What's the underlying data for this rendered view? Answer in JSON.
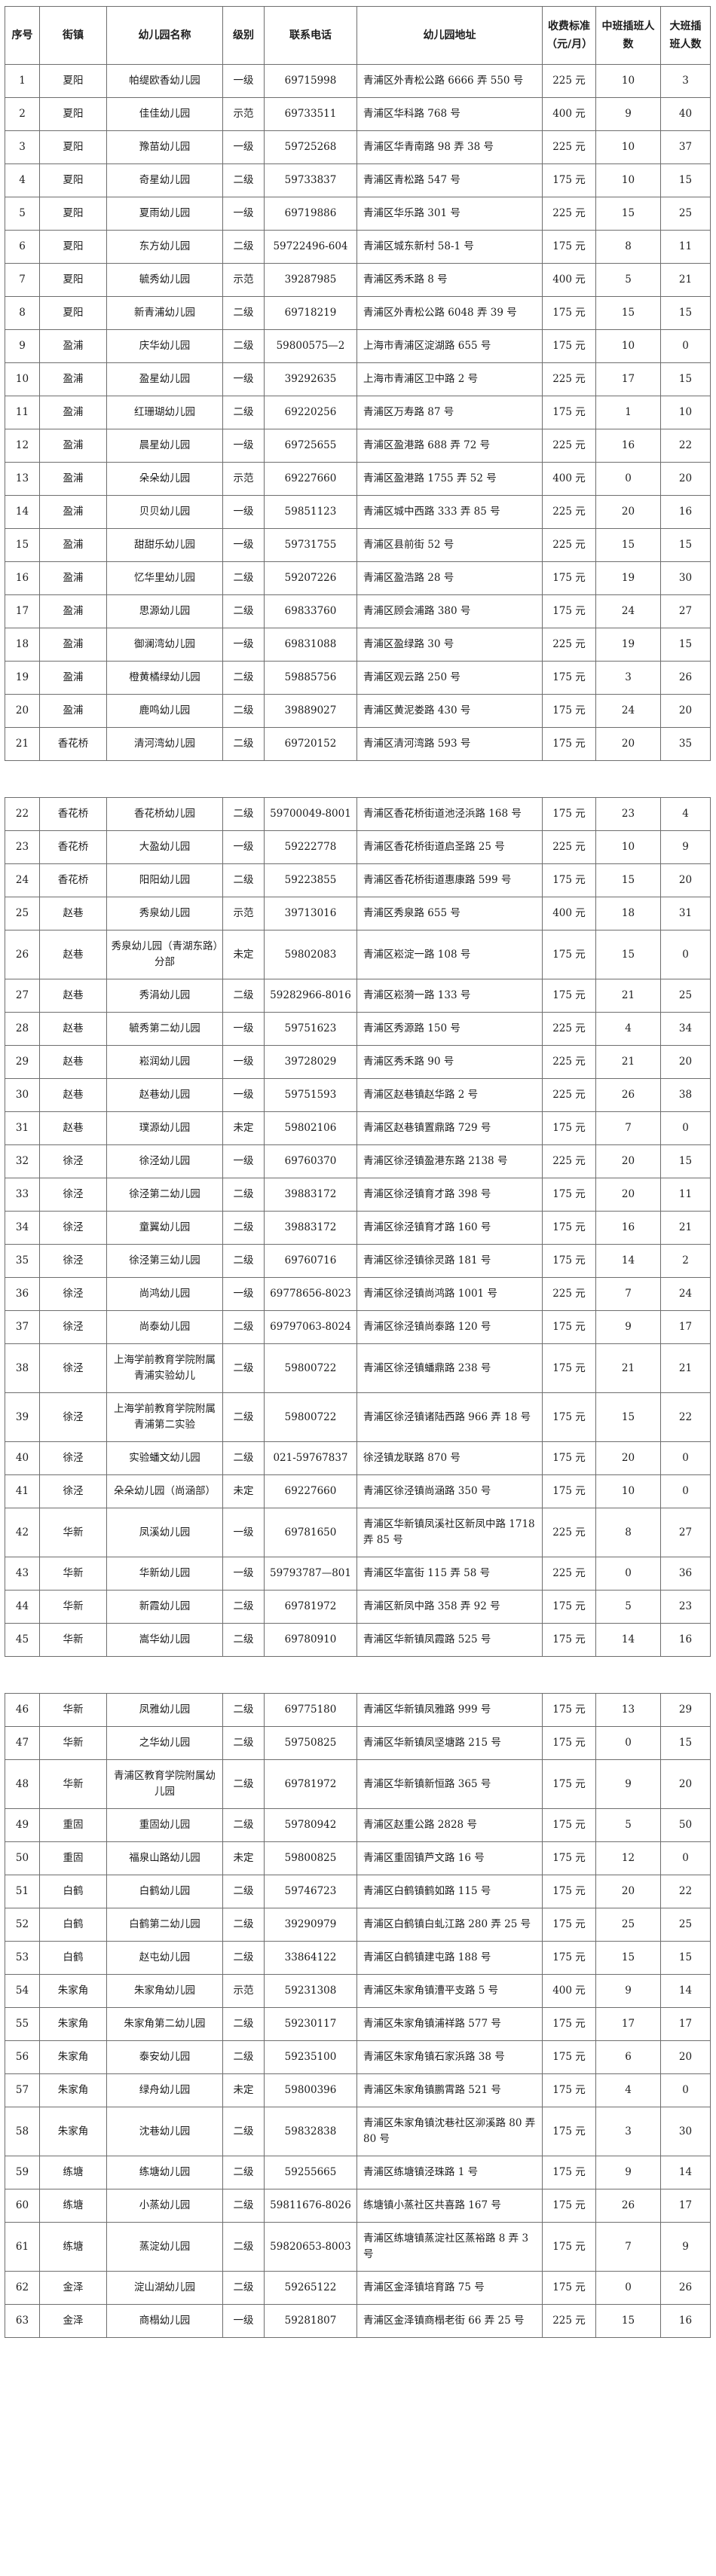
{
  "colors": {
    "background": "#ffffff",
    "text": "#1c1c1c",
    "border": "#6e6e6e"
  },
  "table": {
    "columns": [
      "序号",
      "街镇",
      "幼儿园名称",
      "级别",
      "联系电话",
      "幼儿园地址",
      "收费标准（元/月）",
      "中班插班人数",
      "大班插班人数"
    ],
    "sections": [
      {
        "rows": [
          {
            "no": "1",
            "town": "夏阳",
            "name": "帕缇欧香幼儿园",
            "level": "一级",
            "phone": "69715998",
            "address": "青浦区外青松公路 6666 弄 550 号",
            "fee": "225 元",
            "mid": "10",
            "big": "3"
          },
          {
            "no": "2",
            "town": "夏阳",
            "name": "佳佳幼儿园",
            "level": "示范",
            "phone": "69733511",
            "address": "青浦区华科路 768 号",
            "fee": "400 元",
            "mid": "9",
            "big": "40"
          },
          {
            "no": "3",
            "town": "夏阳",
            "name": "豫苗幼儿园",
            "level": "一级",
            "phone": "59725268",
            "address": "青浦区华青南路 98 弄 38 号",
            "fee": "225 元",
            "mid": "10",
            "big": "37"
          },
          {
            "no": "4",
            "town": "夏阳",
            "name": "奇星幼儿园",
            "level": "二级",
            "phone": "59733837",
            "address": "青浦区青松路 547 号",
            "fee": "175 元",
            "mid": "10",
            "big": "15"
          },
          {
            "no": "5",
            "town": "夏阳",
            "name": "夏雨幼儿园",
            "level": "一级",
            "phone": "69719886",
            "address": "青浦区华乐路 301 号",
            "fee": "225 元",
            "mid": "15",
            "big": "25"
          },
          {
            "no": "6",
            "town": "夏阳",
            "name": "东方幼儿园",
            "level": "二级",
            "phone": "59722496-604",
            "address": "青浦区城东新村 58-1 号",
            "fee": "175 元",
            "mid": "8",
            "big": "11"
          },
          {
            "no": "7",
            "town": "夏阳",
            "name": "毓秀幼儿园",
            "level": "示范",
            "phone": "39287985",
            "address": "青浦区秀禾路 8 号",
            "fee": "400 元",
            "mid": "5",
            "big": "21"
          },
          {
            "no": "8",
            "town": "夏阳",
            "name": "新青浦幼儿园",
            "level": "二级",
            "phone": "69718219",
            "address": "青浦区外青松公路 6048 弄 39 号",
            "fee": "175 元",
            "mid": "15",
            "big": "15"
          },
          {
            "no": "9",
            "town": "盈浦",
            "name": "庆华幼儿园",
            "level": "二级",
            "phone": "59800575—2",
            "address": "上海市青浦区淀湖路 655 号",
            "fee": "175 元",
            "mid": "10",
            "big": "0"
          },
          {
            "no": "10",
            "town": "盈浦",
            "name": "盈星幼儿园",
            "level": "一级",
            "phone": "39292635",
            "address": "上海市青浦区卫中路 2 号",
            "fee": "225 元",
            "mid": "17",
            "big": "15"
          },
          {
            "no": "11",
            "town": "盈浦",
            "name": "红珊瑚幼儿园",
            "level": "二级",
            "phone": "69220256",
            "address": "青浦区万寿路 87 号",
            "fee": "175 元",
            "mid": "1",
            "big": "10"
          },
          {
            "no": "12",
            "town": "盈浦",
            "name": "晨星幼儿园",
            "level": "一级",
            "phone": "69725655",
            "address": "青浦区盈港路 688 弄 72 号",
            "fee": "225 元",
            "mid": "16",
            "big": "22"
          },
          {
            "no": "13",
            "town": "盈浦",
            "name": "朵朵幼儿园",
            "level": "示范",
            "phone": "69227660",
            "address": "青浦区盈港路 1755 弄 52 号",
            "fee": "400 元",
            "mid": "0",
            "big": "20"
          },
          {
            "no": "14",
            "town": "盈浦",
            "name": "贝贝幼儿园",
            "level": "一级",
            "phone": "59851123",
            "address": "青浦区城中西路 333 弄 85 号",
            "fee": "225 元",
            "mid": "20",
            "big": "16"
          },
          {
            "no": "15",
            "town": "盈浦",
            "name": "甜甜乐幼儿园",
            "level": "一级",
            "phone": "59731755",
            "address": "青浦区县前街 52 号",
            "fee": "225 元",
            "mid": "15",
            "big": "15"
          },
          {
            "no": "16",
            "town": "盈浦",
            "name": "忆华里幼儿园",
            "level": "二级",
            "phone": "59207226",
            "address": "青浦区盈浩路 28 号",
            "fee": "175 元",
            "mid": "19",
            "big": "30"
          },
          {
            "no": "17",
            "town": "盈浦",
            "name": "思源幼儿园",
            "level": "二级",
            "phone": "69833760",
            "address": "青浦区顾会浦路 380 号",
            "fee": "175 元",
            "mid": "24",
            "big": "27"
          },
          {
            "no": "18",
            "town": "盈浦",
            "name": "御澜湾幼儿园",
            "level": "一级",
            "phone": "69831088",
            "address": "青浦区盈绿路 30 号",
            "fee": "225 元",
            "mid": "19",
            "big": "15"
          },
          {
            "no": "19",
            "town": "盈浦",
            "name": "橙黄橘绿幼儿园",
            "level": "二级",
            "phone": "59885756",
            "address": "青浦区观云路 250 号",
            "fee": "175 元",
            "mid": "3",
            "big": "26"
          },
          {
            "no": "20",
            "town": "盈浦",
            "name": "鹿鸣幼儿园",
            "level": "二级",
            "phone": "39889027",
            "address": "青浦区黄泥娄路 430 号",
            "fee": "175 元",
            "mid": "24",
            "big": "20"
          },
          {
            "no": "21",
            "town": "香花桥",
            "name": "清河湾幼儿园",
            "level": "二级",
            "phone": "69720152",
            "address": "青浦区清河湾路 593 号",
            "fee": "175 元",
            "mid": "20",
            "big": "35"
          }
        ]
      },
      {
        "rows": [
          {
            "no": "22",
            "town": "香花桥",
            "name": "香花桥幼儿园",
            "level": "二级",
            "phone": "59700049-8001",
            "address": "青浦区香花桥街道池泾浜路 168 号",
            "fee": "175 元",
            "mid": "23",
            "big": "4"
          },
          {
            "no": "23",
            "town": "香花桥",
            "name": "大盈幼儿园",
            "level": "一级",
            "phone": "59222778",
            "address": "青浦区香花桥街道启圣路 25 号",
            "fee": "225 元",
            "mid": "10",
            "big": "9"
          },
          {
            "no": "24",
            "town": "香花桥",
            "name": "阳阳幼儿园",
            "level": "二级",
            "phone": "59223855",
            "address": "青浦区香花桥街道惠康路 599 号",
            "fee": "175 元",
            "mid": "15",
            "big": "20"
          },
          {
            "no": "25",
            "town": "赵巷",
            "name": "秀泉幼儿园",
            "level": "示范",
            "phone": "39713016",
            "address": "青浦区秀泉路 655 号",
            "fee": "400 元",
            "mid": "18",
            "big": "31"
          },
          {
            "no": "26",
            "town": "赵巷",
            "name": "秀泉幼儿园（青湖东路）分部",
            "level": "未定",
            "phone": "59802083",
            "address": "青浦区崧淀一路 108 号",
            "fee": "175 元",
            "mid": "15",
            "big": "0"
          },
          {
            "no": "27",
            "town": "赵巷",
            "name": "秀涓幼儿园",
            "level": "二级",
            "phone": "59282966-8016",
            "address": "青浦区崧漪一路 133 号",
            "fee": "175 元",
            "mid": "21",
            "big": "25"
          },
          {
            "no": "28",
            "town": "赵巷",
            "name": "毓秀第二幼儿园",
            "level": "一级",
            "phone": "59751623",
            "address": "青浦区秀源路 150 号",
            "fee": "225 元",
            "mid": "4",
            "big": "34"
          },
          {
            "no": "29",
            "town": "赵巷",
            "name": "崧润幼儿园",
            "level": "一级",
            "phone": "39728029",
            "address": "青浦区秀禾路 90 号",
            "fee": "225 元",
            "mid": "21",
            "big": "20"
          },
          {
            "no": "30",
            "town": "赵巷",
            "name": "赵巷幼儿园",
            "level": "一级",
            "phone": "59751593",
            "address": "青浦区赵巷镇赵华路 2 号",
            "fee": "225 元",
            "mid": "26",
            "big": "38"
          },
          {
            "no": "31",
            "town": "赵巷",
            "name": "璞源幼儿园",
            "level": "未定",
            "phone": "59802106",
            "address": "青浦区赵巷镇置鼎路 729 号",
            "fee": "175 元",
            "mid": "7",
            "big": "0"
          },
          {
            "no": "32",
            "town": "徐泾",
            "name": "徐泾幼儿园",
            "level": "一级",
            "phone": "69760370",
            "address": "青浦区徐泾镇盈港东路 2138 号",
            "fee": "225 元",
            "mid": "20",
            "big": "15"
          },
          {
            "no": "33",
            "town": "徐泾",
            "name": "徐泾第二幼儿园",
            "level": "二级",
            "phone": "39883172",
            "address": "青浦区徐泾镇育才路 398 号",
            "fee": "175 元",
            "mid": "20",
            "big": "11"
          },
          {
            "no": "34",
            "town": "徐泾",
            "name": "童翼幼儿园",
            "level": "二级",
            "phone": "39883172",
            "address": "青浦区徐泾镇育才路 160 号",
            "fee": "175 元",
            "mid": "16",
            "big": "21"
          },
          {
            "no": "35",
            "town": "徐泾",
            "name": "徐泾第三幼儿园",
            "level": "二级",
            "phone": "69760716",
            "address": "青浦区徐泾镇徐灵路 181 号",
            "fee": "175 元",
            "mid": "14",
            "big": "2"
          },
          {
            "no": "36",
            "town": "徐泾",
            "name": "尚鸿幼儿园",
            "level": "一级",
            "phone": "69778656-8023",
            "address": "青浦区徐泾镇尚鸿路 1001 号",
            "fee": "225 元",
            "mid": "7",
            "big": "24"
          },
          {
            "no": "37",
            "town": "徐泾",
            "name": "尚泰幼儿园",
            "level": "二级",
            "phone": "69797063-8024",
            "address": "青浦区徐泾镇尚泰路 120 号",
            "fee": "175 元",
            "mid": "9",
            "big": "17"
          },
          {
            "no": "38",
            "town": "徐泾",
            "name": "上海学前教育学院附属青浦实验幼儿",
            "level": "二级",
            "phone": "59800722",
            "address": "青浦区徐泾镇蟠鼎路 238 号",
            "fee": "175 元",
            "mid": "21",
            "big": "21"
          },
          {
            "no": "39",
            "town": "徐泾",
            "name": "上海学前教育学院附属青浦第二实验",
            "level": "二级",
            "phone": "59800722",
            "address": "青浦区徐泾镇诸陆西路 966 弄 18 号",
            "fee": "175 元",
            "mid": "15",
            "big": "22"
          },
          {
            "no": "40",
            "town": "徐泾",
            "name": "实验蟠文幼儿园",
            "level": "二级",
            "phone": "021-59767837",
            "address": "徐泾镇龙联路 870 号",
            "fee": "175 元",
            "mid": "20",
            "big": "0"
          },
          {
            "no": "41",
            "town": "徐泾",
            "name": "朵朵幼儿园（尚涵部）",
            "level": "未定",
            "phone": "69227660",
            "address": "青浦区徐泾镇尚涵路 350 号",
            "fee": "175 元",
            "mid": "10",
            "big": "0"
          },
          {
            "no": "42",
            "town": "华新",
            "name": "凤溪幼儿园",
            "level": "一级",
            "phone": "69781650",
            "address": "青浦区华新镇凤溪社区新凤中路 1718 弄 85 号",
            "fee": "225 元",
            "mid": "8",
            "big": "27"
          },
          {
            "no": "43",
            "town": "华新",
            "name": "华新幼儿园",
            "level": "一级",
            "phone": "59793787—801",
            "address": "青浦区华富街 115 弄 58 号",
            "fee": "225 元",
            "mid": "0",
            "big": "36"
          },
          {
            "no": "44",
            "town": "华新",
            "name": "新霞幼儿园",
            "level": "二级",
            "phone": "69781972",
            "address": "青浦区新凤中路 358 弄 92 号",
            "fee": "175 元",
            "mid": "5",
            "big": "23"
          },
          {
            "no": "45",
            "town": "华新",
            "name": "嵩华幼儿园",
            "level": "二级",
            "phone": "69780910",
            "address": "青浦区华新镇凤霞路 525 号",
            "fee": "175 元",
            "mid": "14",
            "big": "16"
          }
        ]
      },
      {
        "rows": [
          {
            "no": "46",
            "town": "华新",
            "name": "凤雅幼儿园",
            "level": "二级",
            "phone": "69775180",
            "address": "青浦区华新镇凤雅路 999 号",
            "fee": "175 元",
            "mid": "13",
            "big": "29"
          },
          {
            "no": "47",
            "town": "华新",
            "name": "之华幼儿园",
            "level": "二级",
            "phone": "59750825",
            "address": "青浦区华新镇凤坚塘路 215 号",
            "fee": "175 元",
            "mid": "0",
            "big": "15"
          },
          {
            "no": "48",
            "town": "华新",
            "name": "青浦区教育学院附属幼儿园",
            "level": "二级",
            "phone": "69781972",
            "address": "青浦区华新镇新恒路 365 号",
            "fee": "175 元",
            "mid": "9",
            "big": "20"
          },
          {
            "no": "49",
            "town": "重固",
            "name": "重固幼儿园",
            "level": "二级",
            "phone": "59780942",
            "address": "青浦区赵重公路 2828 号",
            "fee": "175 元",
            "mid": "5",
            "big": "50"
          },
          {
            "no": "50",
            "town": "重固",
            "name": "福泉山路幼儿园",
            "level": "未定",
            "phone": "59800825",
            "address": "青浦区重固镇芦文路 16 号",
            "fee": "175 元",
            "mid": "12",
            "big": "0"
          },
          {
            "no": "51",
            "town": "白鹤",
            "name": "白鹤幼儿园",
            "level": "二级",
            "phone": "59746723",
            "address": "青浦区白鹤镇鹤如路 115 号",
            "fee": "175 元",
            "mid": "20",
            "big": "22"
          },
          {
            "no": "52",
            "town": "白鹤",
            "name": "白鹤第二幼儿园",
            "level": "二级",
            "phone": "39290979",
            "address": "青浦区白鹤镇白虬江路 280 弄 25 号",
            "fee": "175 元",
            "mid": "25",
            "big": "25"
          },
          {
            "no": "53",
            "town": "白鹤",
            "name": "赵屯幼儿园",
            "level": "二级",
            "phone": "33864122",
            "address": "青浦区白鹤镇建屯路 188 号",
            "fee": "175 元",
            "mid": "15",
            "big": "15"
          },
          {
            "no": "54",
            "town": "朱家角",
            "name": "朱家角幼儿园",
            "level": "示范",
            "phone": "59231308",
            "address": "青浦区朱家角镇漕平支路 5 号",
            "fee": "400 元",
            "mid": "9",
            "big": "14"
          },
          {
            "no": "55",
            "town": "朱家角",
            "name": "朱家角第二幼儿园",
            "level": "二级",
            "phone": "59230117",
            "address": "青浦区朱家角镇浦祥路 577 号",
            "fee": "175 元",
            "mid": "17",
            "big": "17"
          },
          {
            "no": "56",
            "town": "朱家角",
            "name": "泰安幼儿园",
            "level": "二级",
            "phone": "59235100",
            "address": "青浦区朱家角镇石家浜路 38 号",
            "fee": "175 元",
            "mid": "6",
            "big": "20"
          },
          {
            "no": "57",
            "town": "朱家角",
            "name": "绿舟幼儿园",
            "level": "未定",
            "phone": "59800396",
            "address": "青浦区朱家角镇鹏霄路 521 号",
            "fee": "175 元",
            "mid": "4",
            "big": "0"
          },
          {
            "no": "58",
            "town": "朱家角",
            "name": "沈巷幼儿园",
            "level": "二级",
            "phone": "59832838",
            "address": "青浦区朱家角镇沈巷社区泖溪路 80 弄 80 号",
            "fee": "175 元",
            "mid": "3",
            "big": "30"
          },
          {
            "no": "59",
            "town": "练塘",
            "name": "练塘幼儿园",
            "level": "二级",
            "phone": "59255665",
            "address": "青浦区练塘镇泾珠路 1 号",
            "fee": "175 元",
            "mid": "9",
            "big": "14"
          },
          {
            "no": "60",
            "town": "练塘",
            "name": "小蒸幼儿园",
            "level": "二级",
            "phone": "59811676-8026",
            "address": "练塘镇小蒸社区共喜路 167 号",
            "fee": "175 元",
            "mid": "26",
            "big": "17"
          },
          {
            "no": "61",
            "town": "练塘",
            "name": "蒸淀幼儿园",
            "level": "二级",
            "phone": "59820653-8003",
            "address": "青浦区练塘镇蒸淀社区蒸裕路 8 弄 3 号",
            "fee": "175 元",
            "mid": "7",
            "big": "9"
          },
          {
            "no": "62",
            "town": "金泽",
            "name": "淀山湖幼儿园",
            "level": "二级",
            "phone": "59265122",
            "address": "青浦区金泽镇培育路 75 号",
            "fee": "175 元",
            "mid": "0",
            "big": "26"
          },
          {
            "no": "63",
            "town": "金泽",
            "name": "商榻幼儿园",
            "level": "一级",
            "phone": "59281807",
            "address": "青浦区金泽镇商榻老街 66 弄 25 号",
            "fee": "225 元",
            "mid": "15",
            "big": "16"
          }
        ]
      }
    ]
  }
}
